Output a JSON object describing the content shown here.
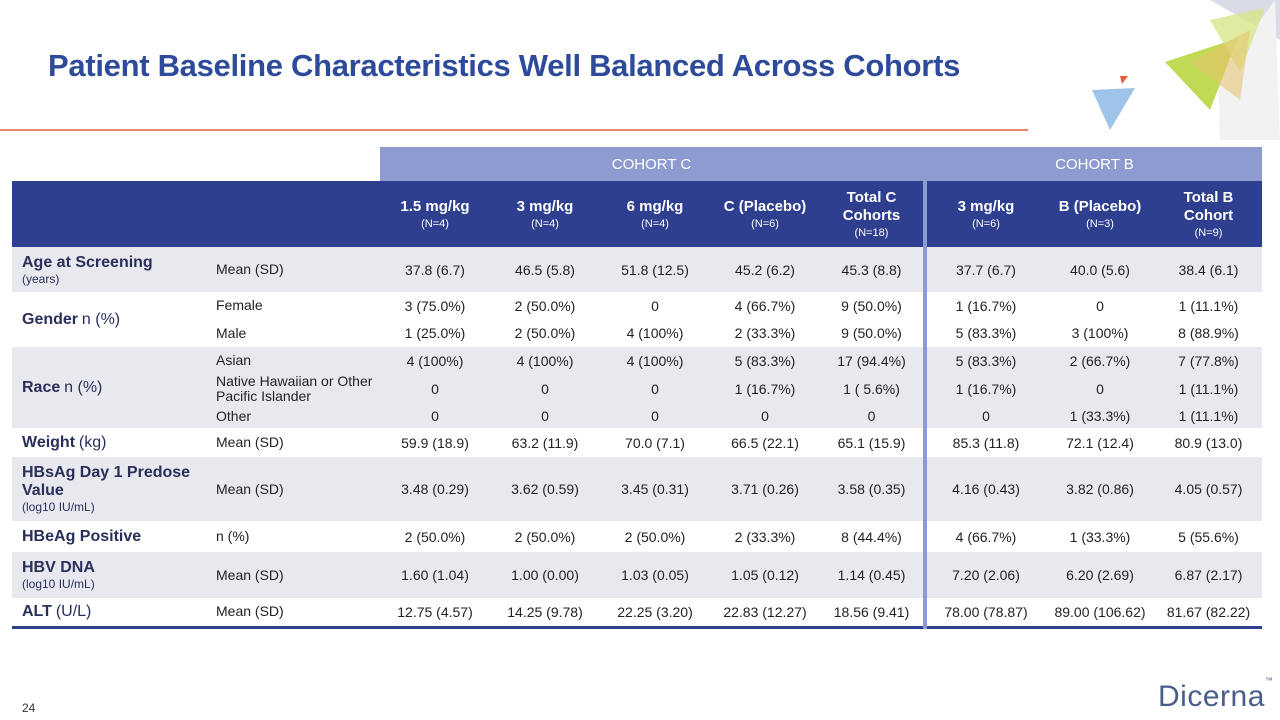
{
  "title": "Patient Baseline Characteristics Well Balanced Across Cohorts",
  "page_number": "24",
  "logo": {
    "name": "Dicerna",
    "mark": "™"
  },
  "table": {
    "groups": [
      "COHORT C",
      "COHORT B"
    ],
    "columns": [
      {
        "name": "1.5 mg/kg",
        "n": "(N=4)"
      },
      {
        "name": "3 mg/kg",
        "n": "(N=4)"
      },
      {
        "name": "6 mg/kg",
        "n": "(N=4)"
      },
      {
        "name": "C (Placebo)",
        "n": "(N=6)"
      },
      {
        "name": "Total C Cohorts",
        "n": "(N=18)"
      },
      {
        "name": "3 mg/kg",
        "n": "(N=6)"
      },
      {
        "name": "B (Placebo)",
        "n": "(N=3)"
      },
      {
        "name": "Total B Cohort",
        "n": "(N=9)"
      }
    ],
    "rows": [
      {
        "label": "Age at Screening",
        "unit": "(years)",
        "subrows": [
          {
            "stat": "Mean (SD)",
            "values": [
              "37.8 (6.7)",
              "46.5 (5.8)",
              "51.8 (12.5)",
              "45.2 (6.2)",
              "45.3 (8.8)",
              "37.7 (6.7)",
              "40.0 (5.6)",
              "38.4 (6.1)"
            ]
          }
        ]
      },
      {
        "label": "Gender",
        "label_suffix": "n (%)",
        "subrows": [
          {
            "stat": "Female",
            "values": [
              "3 (75.0%)",
              "2 (50.0%)",
              "0",
              "4 (66.7%)",
              "9 (50.0%)",
              "1 (16.7%)",
              "0",
              "1 (11.1%)"
            ]
          },
          {
            "stat": "Male",
            "values": [
              "1 (25.0%)",
              "2 (50.0%)",
              "4 (100%)",
              "2 (33.3%)",
              "9 (50.0%)",
              "5 (83.3%)",
              "3 (100%)",
              "8 (88.9%)"
            ]
          }
        ]
      },
      {
        "label": "Race",
        "label_suffix": "n (%)",
        "subrows": [
          {
            "stat": "Asian",
            "values": [
              "4 (100%)",
              "4 (100%)",
              "4 (100%)",
              "5 (83.3%)",
              "17 (94.4%)",
              "5 (83.3%)",
              "2 (66.7%)",
              "7 (77.8%)"
            ]
          },
          {
            "stat": "Native Hawaiian or Other Pacific Islander",
            "values": [
              "0",
              "0",
              "0",
              "1 (16.7%)",
              "1 ( 5.6%)",
              "1 (16.7%)",
              "0",
              "1 (11.1%)"
            ]
          },
          {
            "stat": "Other",
            "values": [
              "0",
              "0",
              "0",
              "0",
              "0",
              "0",
              "1 (33.3%)",
              "1 (11.1%)"
            ]
          }
        ]
      },
      {
        "label": "Weight",
        "label_suffix": "(kg)",
        "subrows": [
          {
            "stat": "Mean (SD)",
            "values": [
              "59.9 (18.9)",
              "63.2 (11.9)",
              "70.0 (7.1)",
              "66.5 (22.1)",
              "65.1 (15.9)",
              "85.3 (11.8)",
              "72.1 (12.4)",
              "80.9 (13.0)"
            ]
          }
        ]
      },
      {
        "label": "HBsAg Day 1 Predose Value",
        "unit": "(log10 IU/mL)",
        "subrows": [
          {
            "stat": "Mean (SD)",
            "values": [
              "3.48 (0.29)",
              "3.62 (0.59)",
              "3.45 (0.31)",
              "3.71 (0.26)",
              "3.58 (0.35)",
              "4.16 (0.43)",
              "3.82 (0.86)",
              "4.05 (0.57)"
            ]
          }
        ]
      },
      {
        "label": "HBeAg Positive",
        "subrows": [
          {
            "stat": "n (%)",
            "values": [
              "2 (50.0%)",
              "2 (50.0%)",
              "2 (50.0%)",
              "2 (33.3%)",
              "8 (44.4%)",
              "4 (66.7%)",
              "1 (33.3%)",
              "5 (55.6%)"
            ]
          }
        ]
      },
      {
        "label": "HBV DNA",
        "unit": "(log10 IU/mL)",
        "subrows": [
          {
            "stat": "Mean (SD)",
            "values": [
              "1.60 (1.04)",
              "1.00 (0.00)",
              "1.03 (0.05)",
              "1.05 (0.12)",
              "1.14 (0.45)",
              "7.20 (2.06)",
              "6.20 (2.69)",
              "6.87 (2.17)"
            ]
          }
        ]
      },
      {
        "label": "ALT",
        "label_suffix": "(U/L)",
        "subrows": [
          {
            "stat": "Mean (SD)",
            "values": [
              "12.75 (4.57)",
              "14.25 (9.78)",
              "22.25 (3.20)",
              "22.83 (12.27)",
              "18.56 (9.41)",
              "78.00 (78.87)",
              "89.00 (106.62)",
              "81.67 (82.22)"
            ]
          }
        ]
      }
    ]
  }
}
